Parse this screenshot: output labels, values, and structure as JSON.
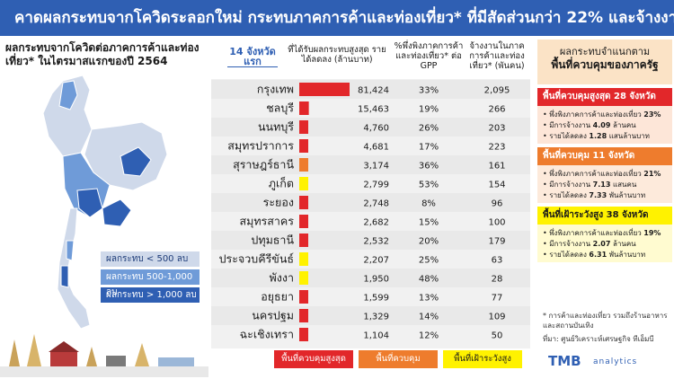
{
  "header": {
    "title": "คาดผลกระทบจากโควิดระลอกใหม่ กระทบภาคการค้าและท่องเที่ยว* ที่มีสัดส่วนกว่า 22% และจ้างงาน 6.9 ล้านคน"
  },
  "map": {
    "title": "ผลกระทบจากโควิดต่อภาคการค้าและท่องเที่ยว* ในไตรมาสแรกของปี 2564",
    "legend": {
      "low": "ผลกระทบ < 500 ลบ",
      "mid": "ผลกระทบ 500-1,000 ลบ",
      "high": "ผลกระทบ > 1,000 ลบ"
    },
    "colors": {
      "low": "#cfd9ea",
      "mid": "#6f9bd8",
      "high": "#2f5fb3"
    }
  },
  "table": {
    "col1": "14 จังหวัดแรก",
    "col2": "ที่ได้รับผลกระทบสูงสุด รายได้ลดลง (ล้านบาท)",
    "col3": "%พึ่งพิงภาคการค้าและท่องเที่ยว* ต่อ GPP",
    "col4": "จ้างงานในภาคการค้าและท่องเที่ยว* (พันคน)"
  },
  "chart_data": {
    "type": "bar",
    "orientation": "horizontal",
    "categories": [
      "กรุงเทพ",
      "ชลบุรี",
      "นนทบุรี",
      "สมุทรปราการ",
      "สุราษฎร์ธานี",
      "ภูเก็ต",
      "ระยอง",
      "สมุทรสาคร",
      "ปทุมธานี",
      "ประจวบคีรีขันธ์",
      "พังงา",
      "อยุธยา",
      "นครปฐม",
      "ฉะเชิงเทรา"
    ],
    "values": [
      81424,
      15463,
      4760,
      4681,
      3174,
      2799,
      2748,
      2682,
      2532,
      2207,
      1950,
      1599,
      1329,
      1104
    ],
    "value_labels": [
      "81,424",
      "15,463",
      "4,760",
      "4,681",
      "3,174",
      "2,799",
      "2,748",
      "2,682",
      "2,532",
      "2,207",
      "1,950",
      "1,599",
      "1,329",
      "1,104"
    ],
    "zones": [
      "red",
      "red",
      "red",
      "red",
      "orange",
      "yellow",
      "red",
      "red",
      "red",
      "yellow",
      "yellow",
      "red",
      "red",
      "red"
    ],
    "gpp_share": [
      "33%",
      "19%",
      "26%",
      "17%",
      "36%",
      "53%",
      "8%",
      "15%",
      "20%",
      "25%",
      "48%",
      "13%",
      "14%",
      "12%"
    ],
    "employment": [
      "2,095",
      "266",
      "203",
      "223",
      "161",
      "154",
      "96",
      "100",
      "179",
      "63",
      "28",
      "77",
      "109",
      "50"
    ],
    "xlim": [
      0,
      81424
    ],
    "zone_colors": {
      "red": "#e2272a",
      "orange": "#ee7c2d",
      "yellow": "#fff200"
    }
  },
  "category_legend": {
    "red": "พื้นที่ควบคุมสูงสุด",
    "orange": "พื้นที่ควบคุม",
    "yellow": "พื้นที่เฝ้าระวังสูง"
  },
  "side": {
    "title1": "ผลกระทบจำแนกตาม",
    "title2": "พื้นที่ควบคุมของภาครัฐ",
    "zones": [
      {
        "title": "พื้นที่ควบคุมสูงสุด 28 จังหวัด",
        "line1_label": "พึ่งพิงภาคการค้าและท่องเที่ยว",
        "line1_value": "23%",
        "line2_label": "มีการจ้างงาน",
        "line2_value": "4.09",
        "line2_unit": "ล้านคน",
        "line3_label": "รายได้ลดลง",
        "line3_value": "1.28",
        "line3_unit": "แสนล้านบาท"
      },
      {
        "title": "พื้นที่ควบคุม 11 จังหวัด",
        "line1_label": "พึ่งพิงภาคการค้าและท่องเที่ยว",
        "line1_value": "21%",
        "line2_label": "มีการจ้างงาน",
        "line2_value": "7.13",
        "line2_unit": "แสนคน",
        "line3_label": "รายได้ลดลง",
        "line3_value": "7.33",
        "line3_unit": "พันล้านบาท"
      },
      {
        "title": "พื้นที่เฝ้าระวังสูง 38 จังหวัด",
        "line1_label": "พึ่งพิงภาคการค้าและท่องเที่ยว",
        "line1_value": "19%",
        "line2_label": "มีการจ้างงาน",
        "line2_value": "2.07",
        "line2_unit": "ล้านคน",
        "line3_label": "รายได้ลดลง",
        "line3_value": "6.31",
        "line3_unit": "พันล้านบาท"
      }
    ]
  },
  "footnote": "* การค้าและท่องเที่ยว รวมถึงร้านอาหารและสถานบันเทิง",
  "source": "ที่มา: ศูนย์วิเคราะห์เศรษฐกิจ ทีเอ็มบี",
  "logo": {
    "main": "TMB",
    "sub": "analytics"
  }
}
